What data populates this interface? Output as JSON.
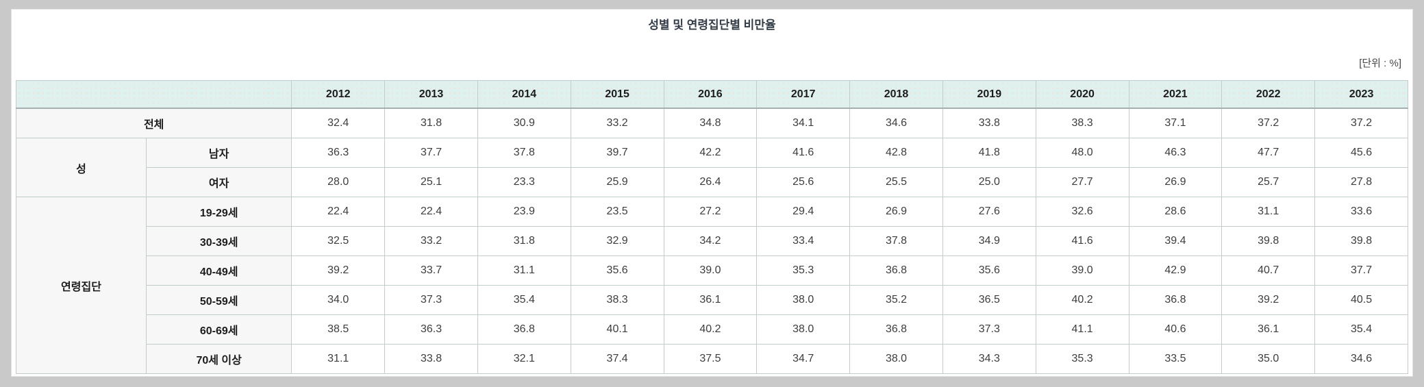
{
  "title": "성별 및 연령집단별 비만율",
  "unit_label": "[단위 : %]",
  "colors": {
    "page_background": "#c9c9c9",
    "card_background": "#ffffff",
    "header_background": "#def1ee",
    "label_cell_background": "#f7f7f7",
    "cell_border": "#c2cccc",
    "header_bottom_border": "#a2b0b0",
    "title_text": "#333c47",
    "value_text": "#3d3d3d"
  },
  "chart_data": {
    "type": "table",
    "title": "성별 및 연령집단별 비만율",
    "unit": "%",
    "years": [
      "2012",
      "2013",
      "2014",
      "2015",
      "2016",
      "2017",
      "2018",
      "2019",
      "2020",
      "2021",
      "2022",
      "2023"
    ],
    "rows": [
      {
        "label": "전체",
        "colspan": 2,
        "values": [
          32.4,
          31.8,
          30.9,
          33.2,
          34.8,
          34.1,
          34.6,
          33.8,
          38.3,
          37.1,
          37.2,
          37.2
        ]
      },
      {
        "group": {
          "label": "성",
          "rowspan": 2
        },
        "label": "남자",
        "values": [
          36.3,
          37.7,
          37.8,
          39.7,
          42.2,
          41.6,
          42.8,
          41.8,
          48.0,
          46.3,
          47.7,
          45.6
        ]
      },
      {
        "label": "여자",
        "values": [
          28.0,
          25.1,
          23.3,
          25.9,
          26.4,
          25.6,
          25.5,
          25.0,
          27.7,
          26.9,
          25.7,
          27.8
        ]
      },
      {
        "group": {
          "label": "연령집단",
          "rowspan": 6
        },
        "label": "19-29세",
        "values": [
          22.4,
          22.4,
          23.9,
          23.5,
          27.2,
          29.4,
          26.9,
          27.6,
          32.6,
          28.6,
          31.1,
          33.6
        ]
      },
      {
        "label": "30-39세",
        "values": [
          32.5,
          33.2,
          31.8,
          32.9,
          34.2,
          33.4,
          37.8,
          34.9,
          41.6,
          39.4,
          39.8,
          39.8
        ]
      },
      {
        "label": "40-49세",
        "values": [
          39.2,
          33.7,
          31.1,
          35.6,
          39.0,
          35.3,
          36.8,
          35.6,
          39.0,
          42.9,
          40.7,
          37.7
        ]
      },
      {
        "label": "50-59세",
        "values": [
          34.0,
          37.3,
          35.4,
          38.3,
          36.1,
          38.0,
          35.2,
          36.5,
          40.2,
          36.8,
          39.2,
          40.5
        ]
      },
      {
        "label": "60-69세",
        "values": [
          38.5,
          36.3,
          36.8,
          40.1,
          40.2,
          38.0,
          36.8,
          37.3,
          41.1,
          40.6,
          36.1,
          35.4
        ]
      },
      {
        "label": "70세 이상",
        "values": [
          31.1,
          33.8,
          32.1,
          37.4,
          37.5,
          34.7,
          38.0,
          34.3,
          35.3,
          33.5,
          35.0,
          34.6
        ]
      }
    ],
    "layout": {
      "label_column_widths_pct": [
        9.35,
        10.45
      ],
      "year_column_width_pct": 6.6833,
      "grid": true
    }
  }
}
